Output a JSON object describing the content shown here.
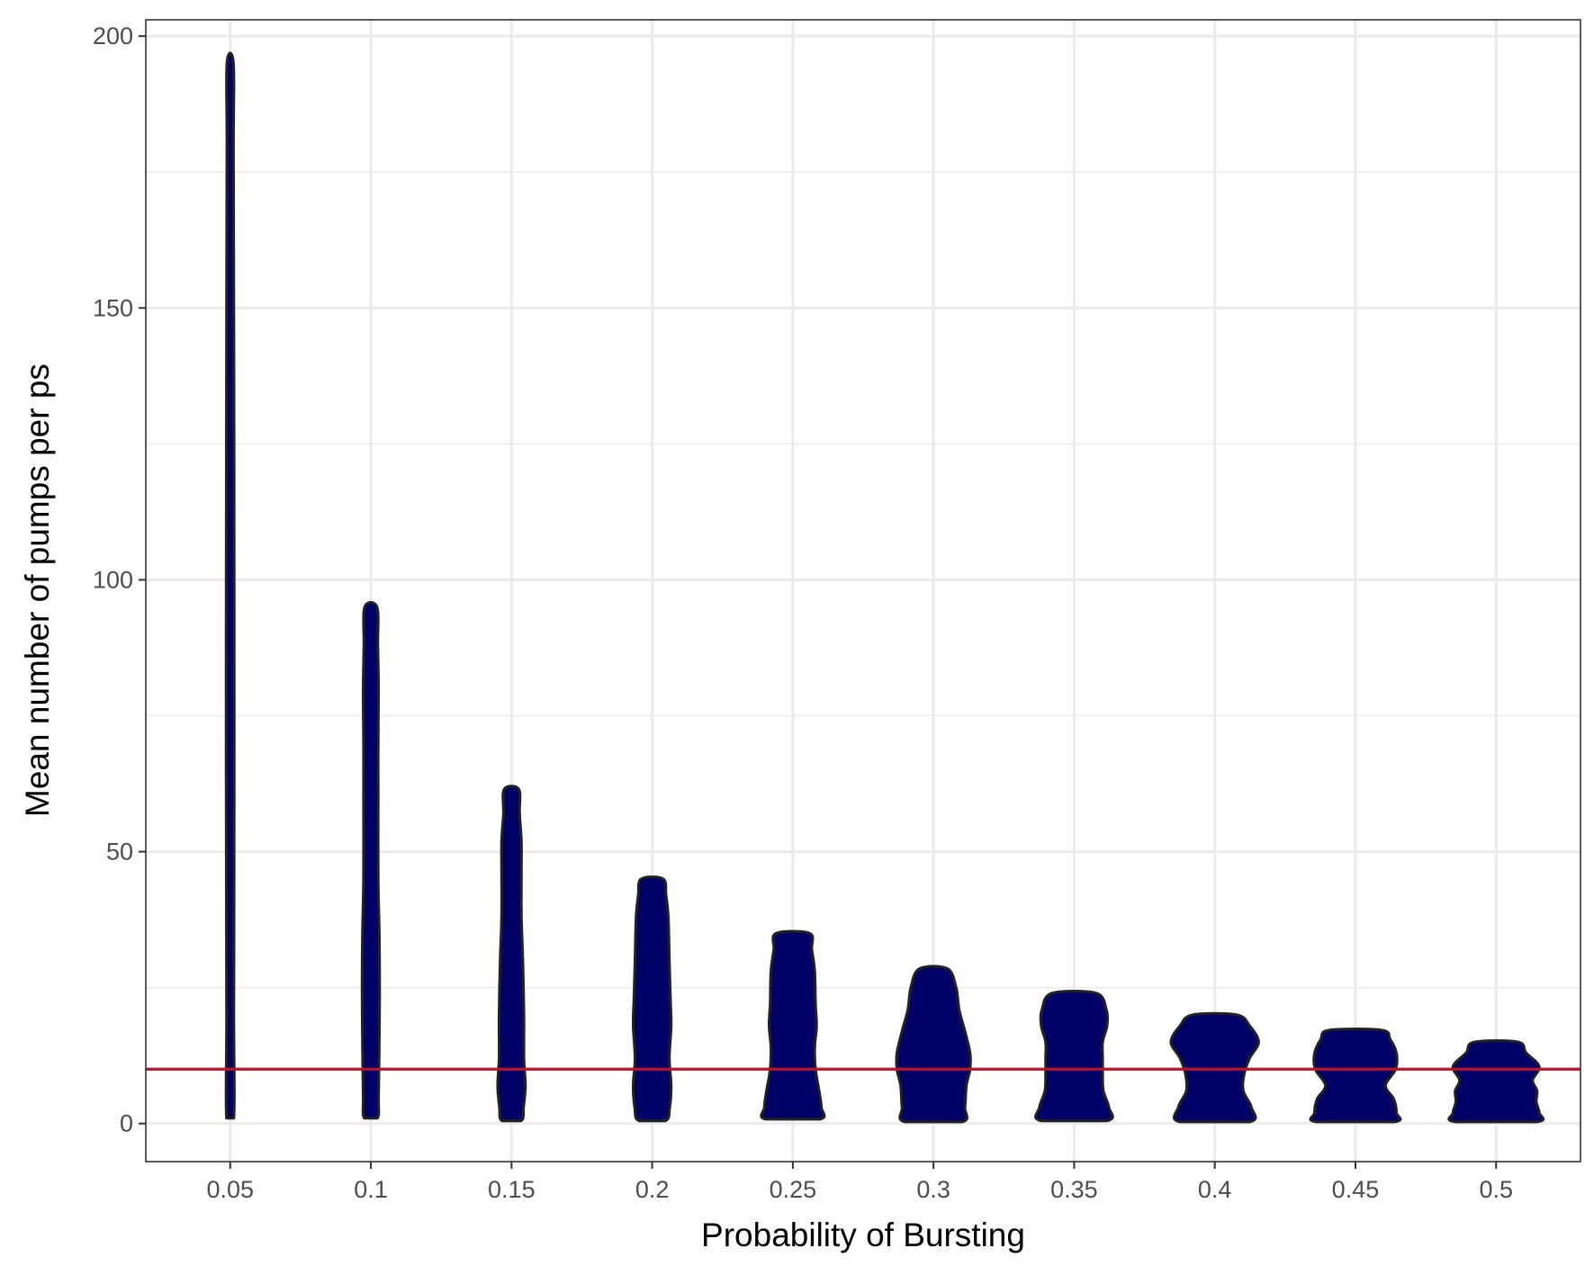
{
  "chart_data": {
    "type": "violin",
    "title": "",
    "xlabel": "Probability of Bursting",
    "ylabel": "Mean number of pumps per ps",
    "ylim": [
      -7,
      203
    ],
    "yticks": [
      0,
      50,
      100,
      150,
      200
    ],
    "grid": true,
    "categories": [
      "0.05",
      "0.1",
      "0.15",
      "0.2",
      "0.25",
      "0.3",
      "0.35",
      "0.4",
      "0.45",
      "0.5"
    ],
    "reference_line": {
      "y": 10,
      "color": "#b2182b"
    },
    "fill_color": "#000066",
    "outline_color": "#222222",
    "violins": [
      {
        "category": "0.05",
        "profile": [
          [
            1,
            0.1
          ],
          [
            20,
            0.1
          ],
          [
            60,
            0.11
          ],
          [
            100,
            0.11
          ],
          [
            150,
            0.1
          ],
          [
            180,
            0.09
          ],
          [
            195,
            0.09
          ]
        ]
      },
      {
        "category": "0.1",
        "profile": [
          [
            1,
            0.18
          ],
          [
            5,
            0.21
          ],
          [
            15,
            0.23
          ],
          [
            25,
            0.24
          ],
          [
            35,
            0.23
          ],
          [
            45,
            0.2
          ],
          [
            60,
            0.2
          ],
          [
            70,
            0.2
          ],
          [
            80,
            0.21
          ],
          [
            88,
            0.19
          ],
          [
            95,
            0.17
          ]
        ]
      },
      {
        "category": "0.15",
        "profile": [
          [
            0.5,
            0.26
          ],
          [
            3,
            0.33
          ],
          [
            7,
            0.38
          ],
          [
            12,
            0.34
          ],
          [
            20,
            0.34
          ],
          [
            30,
            0.31
          ],
          [
            38,
            0.27
          ],
          [
            46,
            0.27
          ],
          [
            52,
            0.27
          ],
          [
            57,
            0.22
          ],
          [
            61.5,
            0.2
          ]
        ]
      },
      {
        "category": "0.2",
        "profile": [
          [
            0.5,
            0.36
          ],
          [
            3,
            0.48
          ],
          [
            7,
            0.52
          ],
          [
            12,
            0.47
          ],
          [
            18,
            0.52
          ],
          [
            23,
            0.5
          ],
          [
            30,
            0.47
          ],
          [
            38,
            0.44
          ],
          [
            42,
            0.38
          ],
          [
            45,
            0.3
          ]
        ]
      },
      {
        "category": "0.25",
        "profile": [
          [
            0.8,
            0.74
          ],
          [
            3,
            0.78
          ],
          [
            6,
            0.72
          ],
          [
            10,
            0.62
          ],
          [
            14,
            0.6
          ],
          [
            18,
            0.65
          ],
          [
            22,
            0.62
          ],
          [
            28,
            0.6
          ],
          [
            32,
            0.52
          ],
          [
            35,
            0.46
          ]
        ]
      },
      {
        "category": "0.3",
        "profile": [
          [
            0.3,
            0.78
          ],
          [
            3,
            0.86
          ],
          [
            7,
            0.9
          ],
          [
            10,
            1.0
          ],
          [
            13,
            1.0
          ],
          [
            17,
            0.86
          ],
          [
            21,
            0.7
          ],
          [
            25,
            0.62
          ],
          [
            28.5,
            0.38
          ]
        ]
      },
      {
        "category": "0.35",
        "profile": [
          [
            0.5,
            0.9
          ],
          [
            3,
            0.95
          ],
          [
            6,
            0.8
          ],
          [
            9,
            0.78
          ],
          [
            12,
            0.78
          ],
          [
            15,
            0.78
          ],
          [
            18,
            0.9
          ],
          [
            21,
            0.88
          ],
          [
            24,
            0.6
          ]
        ]
      },
      {
        "category": "0.4",
        "profile": [
          [
            0.3,
            0.95
          ],
          [
            3,
            1.0
          ],
          [
            6,
            0.78
          ],
          [
            9,
            0.8
          ],
          [
            12,
            0.95
          ],
          [
            15,
            1.2
          ],
          [
            18,
            0.95
          ],
          [
            20,
            0.6
          ]
        ]
      },
      {
        "category": "0.45",
        "profile": [
          [
            0.3,
            1.05
          ],
          [
            2,
            1.12
          ],
          [
            4.5,
            1.05
          ],
          [
            7,
            0.82
          ],
          [
            10,
            1.1
          ],
          [
            13,
            1.12
          ],
          [
            15.5,
            0.95
          ],
          [
            17.2,
            0.72
          ]
        ]
      },
      {
        "category": "0.5",
        "profile": [
          [
            0.3,
            1.1
          ],
          [
            2,
            1.18
          ],
          [
            4,
            1.1
          ],
          [
            6,
            1.12
          ],
          [
            8,
            1.0
          ],
          [
            10.5,
            1.18
          ],
          [
            13,
            0.82
          ],
          [
            15,
            0.6
          ]
        ]
      }
    ]
  }
}
